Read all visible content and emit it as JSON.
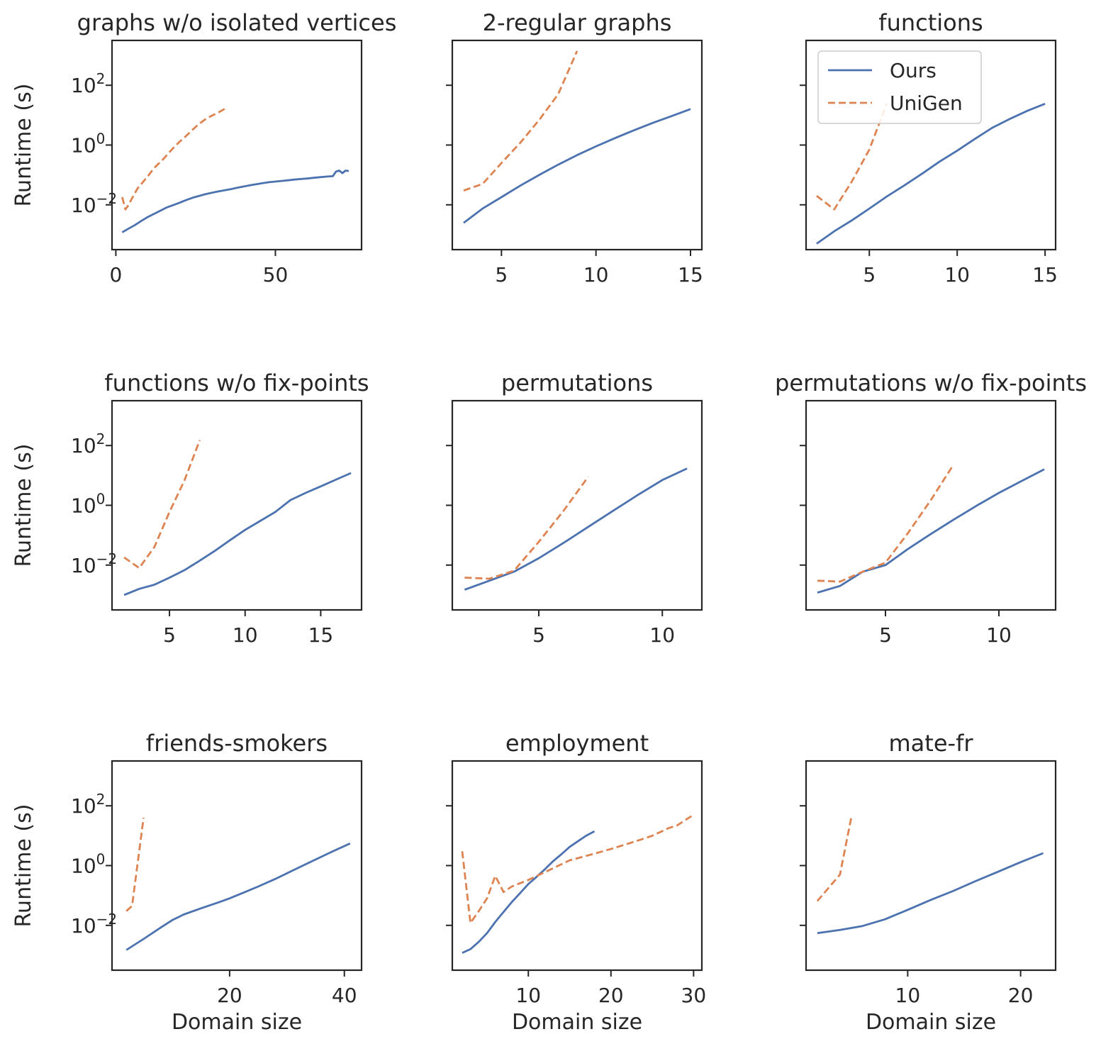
{
  "chart_data": {
    "type": "line",
    "layout": "3x3 grid",
    "shared_y": true,
    "ylabel": "Runtime (s)",
    "xlabel": "Domain size",
    "yscale": "log",
    "ylim_log10": [
      -3.5,
      3.5
    ],
    "yticks": [
      {
        "exp": -2,
        "label": "10",
        "sup": "−2"
      },
      {
        "exp": 0,
        "label": "10",
        "sup": "0"
      },
      {
        "exp": 2,
        "label": "10",
        "sup": "2"
      }
    ],
    "colors": {
      "Ours": "#4c72b0",
      "UniGen": "#dd8452"
    },
    "legend": {
      "position": "upper-left of third panel",
      "entries": [
        "Ours",
        "UniGen"
      ]
    },
    "panels": [
      {
        "title": "graphs w/o isolated vertices",
        "xlim": [
          -1.2,
          77
        ],
        "xticks": [
          0,
          50
        ],
        "series": [
          {
            "name": "Ours",
            "x": [
              2,
              4,
              6,
              8,
              10,
              12,
              14,
              16,
              18,
              20,
              22,
              24,
              26,
              28,
              30,
              32,
              34,
              36,
              38,
              40,
              42,
              44,
              46,
              48,
              50,
              52,
              54,
              56,
              58,
              60,
              62,
              64,
              66,
              68,
              69,
              70,
              71,
              72,
              73
            ],
            "y": [
              0.0012,
              0.0016,
              0.0021,
              0.0029,
              0.0039,
              0.005,
              0.0064,
              0.0082,
              0.0098,
              0.0118,
              0.0143,
              0.0172,
              0.0197,
              0.0225,
              0.0252,
              0.0279,
              0.0305,
              0.0335,
              0.037,
              0.041,
              0.045,
              0.049,
              0.053,
              0.057,
              0.06,
              0.063,
              0.066,
              0.07,
              0.073,
              0.076,
              0.08,
              0.084,
              0.088,
              0.091,
              0.13,
              0.14,
              0.115,
              0.14,
              0.135
            ]
          },
          {
            "name": "UniGen",
            "x": [
              2,
              3,
              4,
              5,
              6,
              7,
              8,
              10,
              12,
              15,
              18,
              20,
              22,
              24,
              26,
              28,
              30,
              32,
              34,
              35
            ],
            "y": [
              0.018,
              0.007,
              0.01,
              0.016,
              0.025,
              0.038,
              0.05,
              0.09,
              0.17,
              0.35,
              0.8,
              1.3,
              2.0,
              3.2,
              5.0,
              7.2,
              9.5,
              12.0,
              16.0,
              19.0
            ]
          }
        ]
      },
      {
        "title": "2-regular graphs",
        "xlim": [
          2.4,
          15.6
        ],
        "xticks": [
          5,
          10,
          15
        ],
        "series": [
          {
            "name": "Ours",
            "x": [
              3,
              4,
              5,
              6,
              7,
              8,
              9,
              10,
              11,
              12,
              13,
              14,
              15
            ],
            "y": [
              0.0025,
              0.0075,
              0.018,
              0.044,
              0.1,
              0.22,
              0.46,
              0.9,
              1.7,
              3.1,
              5.5,
              9.3,
              16.0
            ]
          },
          {
            "name": "UniGen",
            "x": [
              3,
              4,
              5,
              6,
              7,
              8,
              9
            ],
            "y": [
              0.03,
              0.05,
              0.25,
              1.2,
              7.0,
              50.0,
              1400.0
            ]
          }
        ]
      },
      {
        "title": "functions",
        "xlim": [
          1.4,
          15.6
        ],
        "xticks": [
          5,
          10,
          15
        ],
        "series": [
          {
            "name": "Ours",
            "x": [
              2,
              3,
              4,
              5,
              6,
              7,
              8,
              9,
              10,
              11,
              12,
              13,
              14,
              15
            ],
            "y": [
              0.0005,
              0.0013,
              0.003,
              0.0075,
              0.019,
              0.045,
              0.11,
              0.28,
              0.65,
              1.6,
              3.8,
              7.5,
              14.0,
              24.0
            ]
          },
          {
            "name": "UniGen",
            "x": [
              2,
              3,
              4,
              5,
              6
            ],
            "y": [
              0.02,
              0.007,
              0.06,
              0.7,
              25.0
            ]
          }
        ]
      },
      {
        "title": "functions w/o fix-points",
        "xlim": [
          1.2,
          17.7
        ],
        "xticks": [
          5,
          10,
          15
        ],
        "series": [
          {
            "name": "Ours",
            "x": [
              2,
              3,
              4,
              5,
              6,
              7,
              8,
              9,
              10,
              11,
              12,
              13,
              14,
              15,
              16,
              17
            ],
            "y": [
              0.001,
              0.0016,
              0.0022,
              0.0038,
              0.0068,
              0.014,
              0.03,
              0.068,
              0.15,
              0.3,
              0.6,
              1.5,
              2.6,
              4.3,
              7.2,
              12.0
            ]
          },
          {
            "name": "UniGen",
            "x": [
              2,
              3,
              4,
              5,
              6,
              7
            ],
            "y": [
              0.018,
              0.008,
              0.04,
              0.6,
              7.0,
              150.0
            ]
          }
        ]
      },
      {
        "title": "permutations",
        "xlim": [
          1.5,
          11.6
        ],
        "xticks": [
          5,
          10
        ],
        "series": [
          {
            "name": "Ours",
            "x": [
              2,
              3,
              4,
              5,
              6,
              7,
              8,
              9,
              10,
              11
            ],
            "y": [
              0.0015,
              0.003,
              0.006,
              0.017,
              0.055,
              0.19,
              0.65,
              2.2,
              7.0,
              17.0
            ]
          },
          {
            "name": "UniGen",
            "x": [
              2,
              3,
              4,
              5,
              6,
              7
            ],
            "y": [
              0.0038,
              0.0035,
              0.0065,
              0.06,
              0.65,
              9.0
            ]
          }
        ]
      },
      {
        "title": "permutations w/o fix-points",
        "xlim": [
          1.5,
          12.5
        ],
        "xticks": [
          5,
          10
        ],
        "series": [
          {
            "name": "Ours",
            "x": [
              2,
              3,
              4,
              5,
              6,
              7,
              8,
              9,
              10,
              11,
              12
            ],
            "y": [
              0.0012,
              0.002,
              0.006,
              0.01,
              0.035,
              0.11,
              0.33,
              0.95,
              2.6,
              6.5,
              16.0
            ]
          },
          {
            "name": "UniGen",
            "x": [
              2,
              3,
              4,
              5,
              6,
              7,
              8
            ],
            "y": [
              0.003,
              0.0028,
              0.006,
              0.012,
              0.12,
              1.5,
              23.0
            ]
          }
        ]
      },
      {
        "title": "friends-smokers",
        "xlim": [
          -0.5,
          43
        ],
        "xticks": [
          20,
          40
        ],
        "series": [
          {
            "name": "Ours",
            "x": [
              2,
              5,
              8,
              10,
              12,
              15,
              18,
              20,
              22,
              25,
              28,
              30,
              32,
              35,
              38,
              41
            ],
            "y": [
              0.0015,
              0.0035,
              0.0085,
              0.015,
              0.023,
              0.037,
              0.058,
              0.08,
              0.115,
              0.2,
              0.36,
              0.55,
              0.85,
              1.6,
              3.0,
              5.5
            ]
          },
          {
            "name": "UniGen",
            "x": [
              2,
              3,
              5
            ],
            "y": [
              0.03,
              0.045,
              40.0
            ]
          }
        ]
      },
      {
        "title": "employment",
        "xlim": [
          0.8,
          31
        ],
        "xticks": [
          10,
          20,
          30
        ],
        "series": [
          {
            "name": "Ours",
            "x": [
              2,
              3,
              4,
              5,
              6,
              7,
              8,
              9,
              10,
              11,
              12,
              13,
              14,
              15,
              16,
              17,
              18
            ],
            "y": [
              0.0012,
              0.0016,
              0.0028,
              0.0055,
              0.013,
              0.028,
              0.06,
              0.12,
              0.24,
              0.42,
              0.75,
              1.4,
              2.4,
              4.2,
              6.5,
              10.0,
              14.0
            ]
          },
          {
            "name": "UniGen",
            "x": [
              2,
              3,
              4,
              5,
              6,
              7,
              8,
              10,
              12,
              15,
              18,
              20,
              23,
              25,
              27,
              28,
              30
            ],
            "y": [
              3.0,
              0.012,
              0.03,
              0.08,
              0.45,
              0.13,
              0.2,
              0.33,
              0.6,
              1.5,
              2.5,
              3.6,
              6.5,
              10.0,
              18.0,
              22.0,
              50.0
            ]
          }
        ]
      },
      {
        "title": "mate-fr",
        "xlim": [
          1,
          23.1
        ],
        "xticks": [
          10,
          20
        ],
        "series": [
          {
            "name": "Ours",
            "x": [
              2,
              4,
              6,
              8,
              10,
              12,
              14,
              16,
              18,
              20,
              22
            ],
            "y": [
              0.0055,
              0.007,
              0.0095,
              0.016,
              0.033,
              0.07,
              0.14,
              0.3,
              0.62,
              1.3,
              2.6
            ]
          },
          {
            "name": "UniGen",
            "x": [
              2,
              4,
              5
            ],
            "y": [
              0.065,
              0.5,
              40.0
            ]
          }
        ]
      }
    ]
  }
}
